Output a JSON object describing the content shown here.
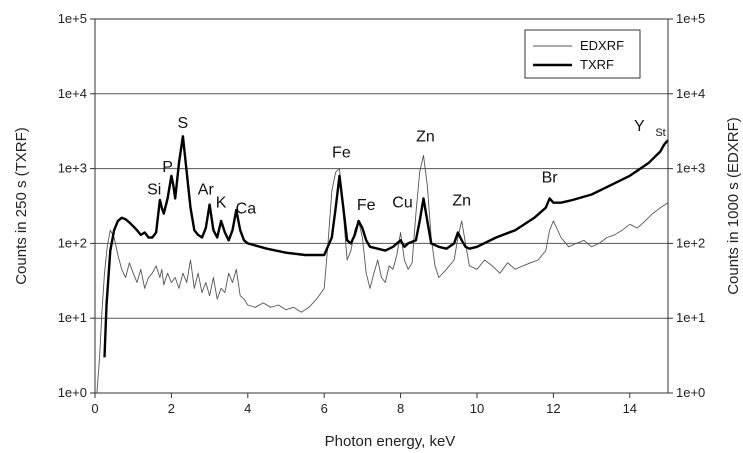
{
  "chart_data": {
    "type": "line",
    "title": "",
    "xlabel": "Photon energy, keV",
    "ylabel_left": "Counts in 250 s (TXRF)",
    "ylabel_right": "Counts in 1000 s (EDXRF)",
    "xlim": [
      0,
      15
    ],
    "ylim": [
      1,
      100000
    ],
    "yscale": "log",
    "grid": "horizontal at decades",
    "legend_position": "top-right",
    "x_ticks": [
      "0",
      "2",
      "4",
      "6",
      "8",
      "10",
      "12",
      "14"
    ],
    "y_ticks": [
      "1e+0",
      "1e+1",
      "1e+2",
      "1e+3",
      "1e+4",
      "1e+5"
    ],
    "series": [
      {
        "name": "EDXRF",
        "style": "thin",
        "color": "#555555",
        "x": [
          0.05,
          0.12,
          0.18,
          0.25,
          0.32,
          0.4,
          0.5,
          0.6,
          0.7,
          0.8,
          0.9,
          1.0,
          1.1,
          1.2,
          1.3,
          1.4,
          1.5,
          1.6,
          1.7,
          1.75,
          1.8,
          1.9,
          2.0,
          2.1,
          2.2,
          2.3,
          2.4,
          2.5,
          2.6,
          2.7,
          2.8,
          2.9,
          3.0,
          3.1,
          3.2,
          3.3,
          3.4,
          3.5,
          3.6,
          3.7,
          3.8,
          3.9,
          4.0,
          4.2,
          4.4,
          4.6,
          4.8,
          5.0,
          5.2,
          5.4,
          5.6,
          5.8,
          6.0,
          6.1,
          6.2,
          6.3,
          6.4,
          6.5,
          6.6,
          6.7,
          6.8,
          6.9,
          7.0,
          7.1,
          7.2,
          7.3,
          7.4,
          7.5,
          7.6,
          7.7,
          7.8,
          7.9,
          8.0,
          8.1,
          8.2,
          8.3,
          8.4,
          8.5,
          8.6,
          8.7,
          8.8,
          8.9,
          9.0,
          9.2,
          9.4,
          9.5,
          9.6,
          9.7,
          9.8,
          10.0,
          10.2,
          10.4,
          10.6,
          10.8,
          11.0,
          11.2,
          11.4,
          11.6,
          11.8,
          11.9,
          12.0,
          12.2,
          12.4,
          12.6,
          12.8,
          13.0,
          13.2,
          13.4,
          13.6,
          13.8,
          14.0,
          14.2,
          14.4,
          14.6,
          14.8,
          15.0
        ],
        "y": [
          1,
          3,
          12,
          40,
          90,
          150,
          120,
          70,
          45,
          35,
          55,
          40,
          30,
          45,
          25,
          35,
          40,
          50,
          35,
          45,
          28,
          40,
          30,
          35,
          25,
          40,
          30,
          60,
          25,
          40,
          22,
          30,
          20,
          35,
          18,
          25,
          22,
          40,
          30,
          45,
          20,
          18,
          15,
          14,
          16,
          14,
          15,
          13,
          14,
          12,
          14,
          18,
          25,
          100,
          500,
          900,
          1000,
          250,
          60,
          80,
          150,
          200,
          120,
          40,
          25,
          40,
          60,
          35,
          30,
          50,
          45,
          70,
          140,
          60,
          45,
          55,
          250,
          900,
          1500,
          600,
          120,
          50,
          35,
          45,
          60,
          120,
          200,
          100,
          50,
          45,
          60,
          50,
          40,
          55,
          45,
          50,
          55,
          60,
          80,
          150,
          200,
          120,
          90,
          100,
          110,
          90,
          100,
          120,
          130,
          150,
          180,
          160,
          200,
          250,
          300,
          350
        ]
      },
      {
        "name": "TXRF",
        "style": "thick",
        "color": "#000000",
        "x": [
          0.25,
          0.3,
          0.4,
          0.5,
          0.6,
          0.7,
          0.8,
          0.9,
          1.0,
          1.1,
          1.2,
          1.3,
          1.4,
          1.5,
          1.6,
          1.7,
          1.75,
          1.8,
          1.9,
          2.0,
          2.05,
          2.1,
          2.2,
          2.3,
          2.4,
          2.5,
          2.6,
          2.7,
          2.8,
          2.9,
          3.0,
          3.1,
          3.2,
          3.3,
          3.4,
          3.5,
          3.6,
          3.7,
          3.8,
          3.9,
          4.0,
          4.5,
          5.0,
          5.5,
          6.0,
          6.2,
          6.3,
          6.4,
          6.5,
          6.6,
          6.7,
          6.8,
          6.9,
          7.0,
          7.1,
          7.2,
          7.4,
          7.6,
          7.8,
          8.0,
          8.1,
          8.2,
          8.4,
          8.5,
          8.6,
          8.7,
          8.8,
          9.0,
          9.2,
          9.4,
          9.5,
          9.6,
          9.7,
          9.8,
          10.0,
          10.5,
          11.0,
          11.5,
          11.8,
          11.9,
          12.0,
          12.2,
          12.5,
          13.0,
          13.5,
          14.0,
          14.5,
          14.8,
          14.9,
          15.0
        ],
        "y": [
          3,
          15,
          80,
          150,
          200,
          220,
          210,
          190,
          170,
          150,
          130,
          140,
          120,
          120,
          140,
          380,
          300,
          250,
          400,
          800,
          600,
          400,
          1200,
          2700,
          900,
          300,
          150,
          130,
          120,
          160,
          330,
          150,
          120,
          200,
          140,
          110,
          150,
          280,
          150,
          110,
          100,
          85,
          75,
          70,
          70,
          120,
          300,
          800,
          300,
          110,
          100,
          130,
          200,
          160,
          110,
          90,
          85,
          80,
          90,
          110,
          90,
          100,
          110,
          200,
          400,
          200,
          100,
          90,
          85,
          100,
          140,
          110,
          90,
          85,
          90,
          120,
          150,
          220,
          300,
          400,
          350,
          350,
          380,
          450,
          600,
          800,
          1200,
          1700,
          2100,
          2400
        ]
      }
    ],
    "annotations": [
      {
        "text": "Si",
        "x": 1.55,
        "y": 450
      },
      {
        "text": "P",
        "x": 1.9,
        "y": 900
      },
      {
        "text": "S",
        "x": 2.3,
        "y": 3500
      },
      {
        "text": "Ar",
        "x": 2.9,
        "y": 450
      },
      {
        "text": "K",
        "x": 3.3,
        "y": 300
      },
      {
        "text": "Ca",
        "x": 3.95,
        "y": 250
      },
      {
        "text": "Fe",
        "x": 6.45,
        "y": 1400
      },
      {
        "text": "Fe",
        "x": 7.1,
        "y": 280
      },
      {
        "text": "Cu",
        "x": 8.05,
        "y": 300
      },
      {
        "text": "Zn",
        "x": 8.65,
        "y": 2300
      },
      {
        "text": "Zn",
        "x": 9.6,
        "y": 320
      },
      {
        "text": "Br",
        "x": 11.9,
        "y": 650
      },
      {
        "text": "Y",
        "sub": "St",
        "x": 14.25,
        "y": 3200
      }
    ]
  }
}
